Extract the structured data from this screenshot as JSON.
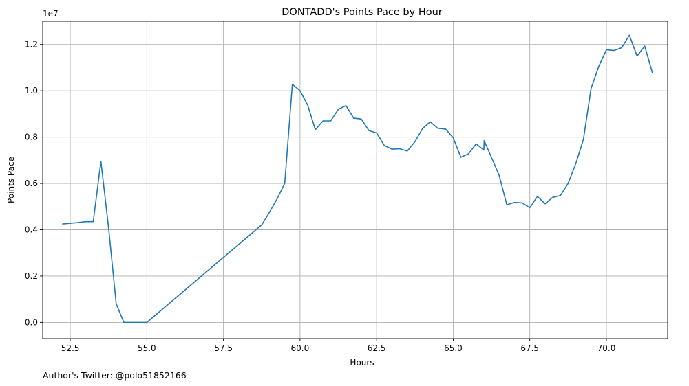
{
  "chart_data": {
    "type": "line",
    "title": "DONTADD's Points Pace by Hour",
    "xlabel": "Hours",
    "ylabel": "Points Pace",
    "y_offset_label": "1e7",
    "footer": "Author's Twitter: @polo51852166",
    "xlim": [
      51.6,
      72.0
    ],
    "ylim": [
      -0.07,
      1.3
    ],
    "y_scale_factor": 10000000,
    "grid": true,
    "xticks": [
      52.5,
      55.0,
      57.5,
      60.0,
      62.5,
      65.0,
      67.5,
      70.0
    ],
    "xtick_labels": [
      "52.5",
      "55.0",
      "57.5",
      "60.0",
      "62.5",
      "65.0",
      "67.5",
      "70.0"
    ],
    "yticks": [
      0.0,
      0.2,
      0.4,
      0.6,
      0.8,
      1.0,
      1.2
    ],
    "ytick_labels": [
      "0.0",
      "0.2",
      "0.4",
      "0.6",
      "0.8",
      "1.0",
      "1.2"
    ],
    "line_color": "#1f77b4",
    "series": [
      {
        "x": [
          52.25,
          52.5,
          52.75,
          53.0,
          53.25,
          53.5,
          53.75,
          54.0,
          54.25,
          54.5,
          54.75,
          55.0,
          58.75,
          59.0,
          59.25,
          59.5,
          59.75,
          60.0,
          60.25,
          60.5,
          60.75,
          61.0,
          61.25,
          61.5,
          61.75,
          62.0,
          62.25,
          62.5,
          62.75,
          63.0,
          63.25,
          63.5,
          63.75,
          64.0,
          64.25,
          64.5,
          64.75,
          65.0,
          65.25,
          65.5,
          65.75,
          66.0,
          66.01,
          66.25,
          66.5,
          66.75,
          67.0,
          67.25,
          67.5,
          67.75,
          68.0,
          68.25,
          68.5,
          68.75,
          69.0,
          69.25,
          69.5,
          69.75,
          70.0,
          70.25,
          70.5,
          70.75,
          71.0,
          71.25,
          71.5
        ],
        "values": [
          0.425,
          0.428,
          0.431,
          0.435,
          0.435,
          0.695,
          0.41,
          0.08,
          0.0,
          0.0,
          0.0,
          0.0,
          0.421,
          0.475,
          0.533,
          0.6,
          1.028,
          1.0,
          0.938,
          0.832,
          0.87,
          0.87,
          0.92,
          0.936,
          0.882,
          0.878,
          0.828,
          0.818,
          0.764,
          0.748,
          0.75,
          0.74,
          0.78,
          0.837,
          0.866,
          0.838,
          0.835,
          0.797,
          0.713,
          0.728,
          0.771,
          0.744,
          0.785,
          0.712,
          0.635,
          0.508,
          0.518,
          0.516,
          0.495,
          0.544,
          0.512,
          0.54,
          0.548,
          0.6,
          0.685,
          0.79,
          1.01,
          1.105,
          1.177,
          1.174,
          1.186,
          1.24,
          1.15,
          1.193,
          1.078
        ]
      }
    ]
  }
}
